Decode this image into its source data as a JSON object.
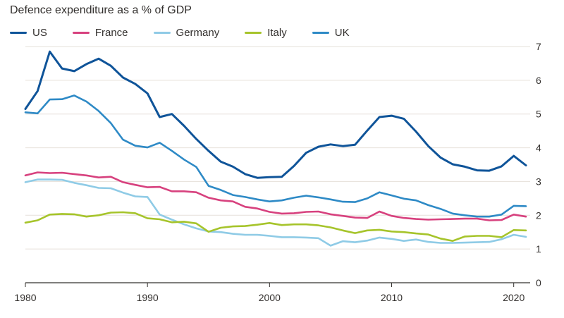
{
  "chart_data": {
    "type": "line",
    "title": "Defence expenditure as a % of GDP",
    "ylim": [
      0,
      7
    ],
    "yticks": [
      0,
      1,
      2,
      3,
      4,
      5,
      6,
      7
    ],
    "xlim": [
      1980,
      2021
    ],
    "xticks": [
      1980,
      1990,
      2000,
      2010,
      2020
    ],
    "grid": true,
    "legend": "top-left",
    "x": [
      1980,
      1981,
      1982,
      1983,
      1984,
      1985,
      1986,
      1987,
      1988,
      1989,
      1990,
      1991,
      1992,
      1993,
      1994,
      1995,
      1996,
      1997,
      1998,
      1999,
      2000,
      2001,
      2002,
      2003,
      2004,
      2005,
      2006,
      2007,
      2008,
      2009,
      2010,
      2011,
      2012,
      2013,
      2014,
      2015,
      2016,
      2017,
      2018,
      2019,
      2020,
      2021
    ],
    "series": [
      {
        "name": "US",
        "color": "#0f5499",
        "values": [
          5.15,
          5.68,
          6.85,
          6.35,
          6.27,
          6.48,
          6.64,
          6.43,
          6.08,
          5.89,
          5.61,
          4.91,
          5.0,
          4.65,
          4.26,
          3.91,
          3.59,
          3.44,
          3.22,
          3.11,
          3.13,
          3.14,
          3.46,
          3.85,
          4.03,
          4.1,
          4.05,
          4.09,
          4.51,
          4.91,
          4.95,
          4.86,
          4.48,
          4.05,
          3.71,
          3.51,
          3.44,
          3.33,
          3.32,
          3.45,
          3.76,
          3.48
        ]
      },
      {
        "name": "France",
        "color": "#d7417e",
        "values": [
          3.18,
          3.27,
          3.25,
          3.26,
          3.22,
          3.18,
          3.12,
          3.14,
          2.98,
          2.9,
          2.83,
          2.84,
          2.71,
          2.71,
          2.68,
          2.52,
          2.44,
          2.41,
          2.25,
          2.2,
          2.1,
          2.05,
          2.06,
          2.1,
          2.11,
          2.03,
          1.98,
          1.93,
          1.92,
          2.11,
          1.98,
          1.92,
          1.89,
          1.87,
          1.88,
          1.89,
          1.9,
          1.9,
          1.85,
          1.86,
          2.02,
          1.96
        ]
      },
      {
        "name": "Germany",
        "color": "#8fcbe6",
        "values": [
          2.98,
          3.06,
          3.06,
          3.05,
          2.96,
          2.89,
          2.81,
          2.8,
          2.67,
          2.56,
          2.54,
          2.02,
          1.87,
          1.73,
          1.61,
          1.52,
          1.5,
          1.45,
          1.42,
          1.42,
          1.39,
          1.35,
          1.35,
          1.34,
          1.32,
          1.1,
          1.23,
          1.2,
          1.25,
          1.34,
          1.3,
          1.24,
          1.28,
          1.21,
          1.18,
          1.18,
          1.19,
          1.2,
          1.21,
          1.29,
          1.42,
          1.36
        ]
      },
      {
        "name": "Italy",
        "color": "#a6c42b",
        "values": [
          1.78,
          1.85,
          2.02,
          2.04,
          2.03,
          1.96,
          2.0,
          2.08,
          2.09,
          2.06,
          1.91,
          1.88,
          1.79,
          1.81,
          1.76,
          1.51,
          1.63,
          1.67,
          1.68,
          1.72,
          1.77,
          1.71,
          1.73,
          1.73,
          1.7,
          1.64,
          1.55,
          1.47,
          1.55,
          1.57,
          1.52,
          1.5,
          1.46,
          1.43,
          1.31,
          1.24,
          1.37,
          1.39,
          1.39,
          1.35,
          1.56,
          1.55
        ]
      },
      {
        "name": "UK",
        "color": "#2e8ac6",
        "values": [
          5.05,
          5.02,
          5.43,
          5.44,
          5.55,
          5.37,
          5.09,
          4.73,
          4.24,
          4.06,
          4.01,
          4.15,
          3.91,
          3.65,
          3.43,
          2.87,
          2.75,
          2.6,
          2.54,
          2.47,
          2.41,
          2.44,
          2.52,
          2.58,
          2.53,
          2.47,
          2.4,
          2.39,
          2.5,
          2.68,
          2.59,
          2.49,
          2.44,
          2.3,
          2.19,
          2.05,
          2.0,
          1.96,
          1.96,
          2.02,
          2.28,
          2.27
        ]
      }
    ]
  }
}
